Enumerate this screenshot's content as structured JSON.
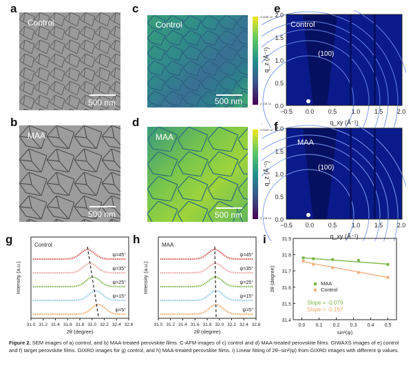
{
  "panels": {
    "a": {
      "letter": "a",
      "label": "Control",
      "scale": "500 nm"
    },
    "b": {
      "letter": "b",
      "label": "MAA",
      "scale": "500 nm"
    },
    "c": {
      "letter": "c",
      "label": "Control",
      "scale": "500 nm",
      "cbar_top": "3.000E-10",
      "cbar_bottom": "2.10E-10"
    },
    "d": {
      "letter": "d",
      "label": "MAA",
      "scale": "500 nm",
      "cbar_top": "3.000E-10",
      "cbar_bottom": "2.10E-10"
    },
    "e": {
      "letter": "e",
      "label": "Control",
      "peak": "(100)"
    },
    "f": {
      "letter": "f",
      "label": "MAA",
      "peak": "(100)"
    },
    "g": {
      "letter": "g",
      "label": "Control"
    },
    "h": {
      "letter": "h",
      "label": "MAA"
    },
    "i": {
      "letter": "i"
    }
  },
  "giwaxs": {
    "ylabel": "q_z (Å⁻¹)",
    "xlabel": "q_xy (Å⁻¹)",
    "yticks": [
      "2.0",
      "1.5",
      "1.0",
      "0.5",
      "0.0"
    ],
    "xticks": [
      "−0.5",
      "0.0",
      "0.5",
      "1.0",
      "1.5",
      "2.0"
    ]
  },
  "gixrd": {
    "ylabel": "Intensity (a.u.)",
    "xlabel": "2θ (degree)",
    "xticks": [
      "31.0",
      "31.2",
      "31.4",
      "31.6",
      "31.8",
      "32.0",
      "32.2",
      "32.4",
      "32.6"
    ],
    "psi_labels": [
      "ψ=45°",
      "ψ=35°",
      "ψ=25°",
      "ψ=15°",
      "ψ=5°"
    ],
    "colors": [
      "#d9534f",
      "#e8a0a0",
      "#7ab648",
      "#8fc8e8",
      "#f0a868"
    ]
  },
  "chart_data": [
    {
      "type": "scatter",
      "panel": "i",
      "xlabel": "sin²(ψ)",
      "ylabel": "2θ (degree)",
      "xlim": [
        -0.05,
        0.55
      ],
      "ylim": [
        31.4,
        31.9
      ],
      "xticks": [
        "0.0",
        "0.1",
        "0.2",
        "0.3",
        "0.4",
        "0.5"
      ],
      "yticks": [
        "31.9",
        "31.8",
        "31.7",
        "31.6",
        "31.5",
        "31.4"
      ],
      "series": [
        {
          "name": "MAA",
          "color": "#7ab648",
          "x": [
            0.008,
            0.067,
            0.179,
            0.329,
            0.5
          ],
          "y": [
            31.78,
            31.775,
            31.77,
            31.765,
            31.74
          ],
          "fit": [
            31.781,
            31.742
          ]
        },
        {
          "name": "Control",
          "color": "#f0b080",
          "x": [
            0.008,
            0.067,
            0.179,
            0.329,
            0.5
          ],
          "y": [
            31.76,
            31.74,
            31.72,
            31.69,
            31.66
          ],
          "fit": [
            31.758,
            31.66
          ]
        }
      ],
      "annotations": [
        {
          "text": "Slope = -0.079",
          "color": "#7ab648"
        },
        {
          "text": "Slope = -0.197",
          "color": "#f0a868"
        }
      ]
    }
  ],
  "caption": {
    "label": "Figure 2.",
    "text": " SEM images of a) control, and b) MAA-treated perovskite films. C-AFM images of c) control and d) MAA-treated perovskite films. GIWAXS images of e) control and f) target perovskite films. GIXRD images for g) control, and h) MAA-treated perovskite films. i) Linear fitting of 2θ−sin²(ψ) from GIXRD images with different ψ values."
  }
}
